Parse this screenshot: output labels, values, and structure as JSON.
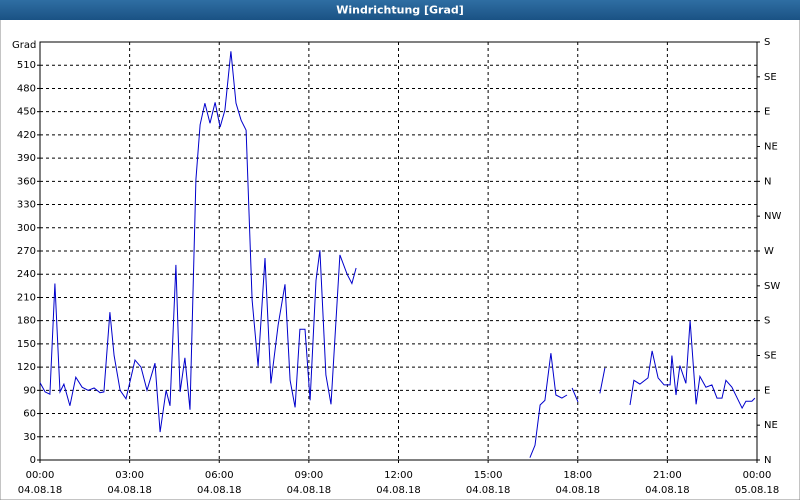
{
  "chart_data": {
    "type": "line",
    "title": "Windrichtung [Grad]",
    "y_label": "Grad",
    "xlim": [
      0,
      24
    ],
    "xticks": [
      {
        "value": 0,
        "label": "00:00"
      },
      {
        "value": 3,
        "label": "03:00"
      },
      {
        "value": 6,
        "label": "06:00"
      },
      {
        "value": 9,
        "label": "09:00"
      },
      {
        "value": 12,
        "label": "12:00"
      },
      {
        "value": 15,
        "label": "15:00"
      },
      {
        "value": 18,
        "label": "18:00"
      },
      {
        "value": 21,
        "label": "21:00"
      },
      {
        "value": 24,
        "label": "00:00"
      }
    ],
    "xtick_dates": [
      "04.08.18",
      "04.08.18",
      "04.08.18",
      "04.08.18",
      "04.08.18",
      "04.08.18",
      "04.08.18",
      "04.08.18",
      "05.08.18"
    ],
    "ylim": [
      0,
      540
    ],
    "yticks": [
      0,
      30,
      60,
      90,
      120,
      150,
      180,
      210,
      240,
      270,
      300,
      330,
      360,
      390,
      420,
      450,
      480,
      510
    ],
    "y2lim": [
      0,
      540
    ],
    "y2ticks": [
      {
        "value": 0,
        "label": "N"
      },
      {
        "value": 45,
        "label": "NE"
      },
      {
        "value": 90,
        "label": "E"
      },
      {
        "value": 135,
        "label": "SE"
      },
      {
        "value": 180,
        "label": "S"
      },
      {
        "value": 225,
        "label": "SW"
      },
      {
        "value": 270,
        "label": "W"
      },
      {
        "value": 315,
        "label": "NW"
      },
      {
        "value": 360,
        "label": "N"
      },
      {
        "value": 405,
        "label": "NE"
      },
      {
        "value": 450,
        "label": "E"
      },
      {
        "value": 495,
        "label": "SE"
      },
      {
        "value": 540,
        "label": "S"
      }
    ],
    "grid": true,
    "series": [
      {
        "color": "#0000cc",
        "x": [
          0,
          0.17,
          0.33,
          0.5,
          0.67,
          0.8,
          1.0,
          1.2,
          1.41,
          1.61,
          1.81,
          2.01,
          2.14,
          2.34,
          2.48,
          2.68,
          2.88,
          3.18,
          3.38,
          3.58,
          3.85,
          4.02,
          4.22,
          4.35,
          4.55,
          4.69,
          4.85,
          5.02,
          5.22,
          5.36,
          5.52,
          5.69,
          5.86,
          6.03,
          6.19,
          6.39,
          6.56,
          6.73,
          6.9,
          7.1,
          7.3,
          7.53,
          7.73,
          7.97,
          8.2,
          8.37,
          8.54,
          8.7,
          8.87,
          9.04,
          9.24,
          9.37,
          9.57,
          9.74,
          10.04,
          10.28,
          10.44,
          10.58,
          12,
          16.4,
          16.57,
          16.74,
          16.9,
          17.1,
          17.27,
          17.47,
          17.64,
          17.7,
          17.81,
          18.01,
          18.3,
          18.74,
          18.91,
          19.5,
          19.75,
          19.88,
          20.08,
          20.35,
          20.49,
          20.69,
          20.89,
          21.09,
          21.15,
          21.29,
          21.42,
          21.62,
          21.76,
          21.96,
          22.09,
          22.29,
          22.49,
          22.66,
          22.83,
          22.96,
          23.16,
          23.3,
          23.5,
          23.63,
          23.83,
          23.93
        ],
        "values": [
          100,
          88,
          85,
          228,
          88,
          98,
          70,
          107,
          94,
          90,
          93,
          87,
          88,
          191,
          135,
          90,
          79,
          129,
          120,
          90,
          125,
          36,
          90,
          70,
          252,
          88,
          132,
          65,
          362,
          433,
          461,
          435,
          462,
          430,
          452,
          528,
          461,
          439,
          426,
          207,
          121,
          261,
          99,
          174,
          227,
          103,
          68,
          169,
          169,
          77,
          232,
          271,
          110,
          72,
          265,
          240,
          228,
          248,
          null,
          3,
          19,
          71,
          77,
          138,
          84,
          80,
          84,
          null,
          93,
          75,
          null,
          86,
          119,
          null,
          71,
          103,
          98,
          106,
          141,
          106,
          97,
          97,
          135,
          84,
          122,
          99,
          180,
          72,
          108,
          94,
          97,
          80,
          80,
          103,
          94,
          83,
          67,
          76,
          76,
          80
        ]
      }
    ]
  }
}
